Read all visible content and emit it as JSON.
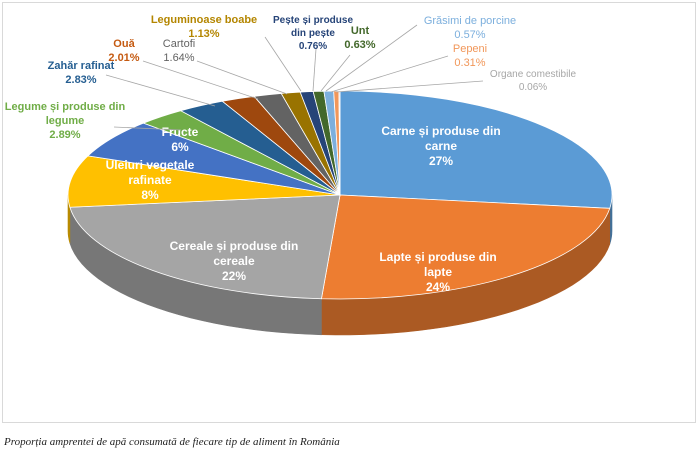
{
  "caption": "Proporția amprentei de apă consumată de fiecare tip de aliment în România",
  "chart_data": {
    "type": "pie",
    "title": "",
    "slices": [
      {
        "label": "Carne și produse din carne",
        "value": 27,
        "display": "27%",
        "color": "#5b9bd5",
        "label_color": "#ffffff"
      },
      {
        "label": "Lapte și produse din lapte",
        "value": 24,
        "display": "24%",
        "color": "#ed7d31",
        "label_color": "#ffffff"
      },
      {
        "label": "Cereale și produse din cereale",
        "value": 22,
        "display": "22%",
        "color": "#a5a5a5",
        "label_color": "#ffffff"
      },
      {
        "label": "Uleiuri vegetale rafinate",
        "value": 8,
        "display": "8%",
        "color": "#ffc000",
        "label_color": "#ffffff"
      },
      {
        "label": "Fructe",
        "value": 6,
        "display": "6%",
        "color": "#4472c4",
        "label_color": "#ffffff"
      },
      {
        "label": "Legume și produse din legume",
        "value": 2.89,
        "display": "2.89%",
        "color": "#70ad47",
        "label_color": "#70ad47"
      },
      {
        "label": "Zahăr rafinat",
        "value": 2.83,
        "display": "2.83%",
        "color": "#255e91",
        "label_color": "#255e91"
      },
      {
        "label": "Ouă",
        "value": 2.01,
        "display": "2.01%",
        "color": "#9e480e",
        "label_color": "#c55a11"
      },
      {
        "label": "Cartofi",
        "value": 1.64,
        "display": "1.64%",
        "color": "#636363",
        "label_color": "#636363"
      },
      {
        "label": "Leguminoase boabe",
        "value": 1.13,
        "display": "1.13%",
        "color": "#997300",
        "label_color": "#b48600"
      },
      {
        "label": "Pește și produse din pește",
        "value": 0.76,
        "display": "0.76%",
        "color": "#264478",
        "label_color": "#264478"
      },
      {
        "label": "Unt",
        "value": 0.63,
        "display": "0.63%",
        "color": "#43682b",
        "label_color": "#43682b"
      },
      {
        "label": "Grăsimi de porcine",
        "value": 0.57,
        "display": "0.57%",
        "color": "#7cafdd",
        "label_color": "#7cafdd"
      },
      {
        "label": "Pepeni",
        "value": 0.31,
        "display": "0.31%",
        "color": "#f1975a",
        "label_color": "#f1975a"
      },
      {
        "label": "Organe comestibile",
        "value": 0.06,
        "display": "0.06%",
        "color": "#b7b7b7",
        "label_color": "#a6a6a6"
      }
    ],
    "legend": "none",
    "grid": false
  }
}
